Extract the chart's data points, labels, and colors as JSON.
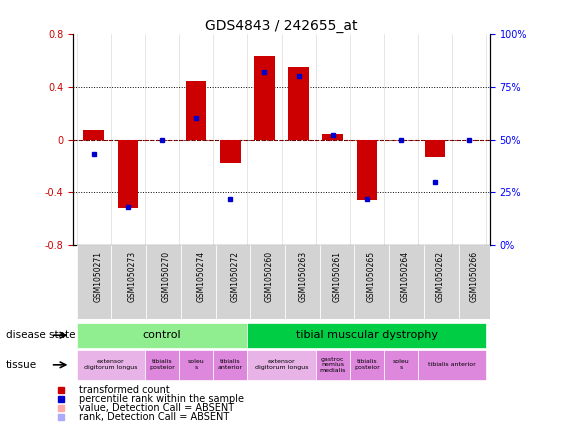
{
  "title": "GDS4843 / 242655_at",
  "samples": [
    "GSM1050271",
    "GSM1050273",
    "GSM1050270",
    "GSM1050274",
    "GSM1050272",
    "GSM1050260",
    "GSM1050263",
    "GSM1050261",
    "GSM1050265",
    "GSM1050264",
    "GSM1050262",
    "GSM1050266"
  ],
  "red_bars": [
    0.07,
    -0.52,
    0.0,
    0.44,
    -0.18,
    0.63,
    0.55,
    0.04,
    -0.46,
    0.0,
    -0.13,
    0.0
  ],
  "blue_dots": [
    43,
    18,
    50,
    60,
    22,
    82,
    80,
    52,
    22,
    50,
    30,
    50
  ],
  "ylim_left": [
    -0.8,
    0.8
  ],
  "ylim_right": [
    0,
    100
  ],
  "yticks_left": [
    -0.8,
    -0.4,
    0.0,
    0.4,
    0.8
  ],
  "yticks_right": [
    0,
    25,
    50,
    75,
    100
  ],
  "ytick_labels_right": [
    "0%",
    "25%",
    "50%",
    "75%",
    "100%"
  ],
  "red_color": "#CC0000",
  "blue_color": "#0000CC",
  "grid_dotted_values": [
    -0.4,
    0.4
  ],
  "tissue_data": [
    {
      "label": "extensor\ndigitorum longus",
      "xstart": -0.5,
      "xend": 1.5,
      "color": "#E8B4E8"
    },
    {
      "label": "tibialis\nposteior",
      "xstart": 1.5,
      "xend": 2.5,
      "color": "#DD88DD"
    },
    {
      "label": "soleu\ns",
      "xstart": 2.5,
      "xend": 3.5,
      "color": "#DD88DD"
    },
    {
      "label": "tibialis\nanterior",
      "xstart": 3.5,
      "xend": 4.5,
      "color": "#DD88DD"
    },
    {
      "label": "extensor\ndigitorum longus",
      "xstart": 4.5,
      "xend": 6.5,
      "color": "#E8B4E8"
    },
    {
      "label": "gastroc\nnemius\nmedialis",
      "xstart": 6.5,
      "xend": 7.5,
      "color": "#DD88DD"
    },
    {
      "label": "tibialis\nposteior",
      "xstart": 7.5,
      "xend": 8.5,
      "color": "#DD88DD"
    },
    {
      "label": "soleu\ns",
      "xstart": 8.5,
      "xend": 9.5,
      "color": "#DD88DD"
    },
    {
      "label": "tibialis anterior",
      "xstart": 9.5,
      "xend": 11.5,
      "color": "#DD88DD"
    }
  ],
  "legend_items": [
    {
      "color": "#CC0000",
      "label": "transformed count"
    },
    {
      "color": "#0000CC",
      "label": "percentile rank within the sample"
    },
    {
      "color": "#FFAAAA",
      "label": "value, Detection Call = ABSENT"
    },
    {
      "color": "#AAAAFF",
      "label": "rank, Detection Call = ABSENT"
    }
  ]
}
